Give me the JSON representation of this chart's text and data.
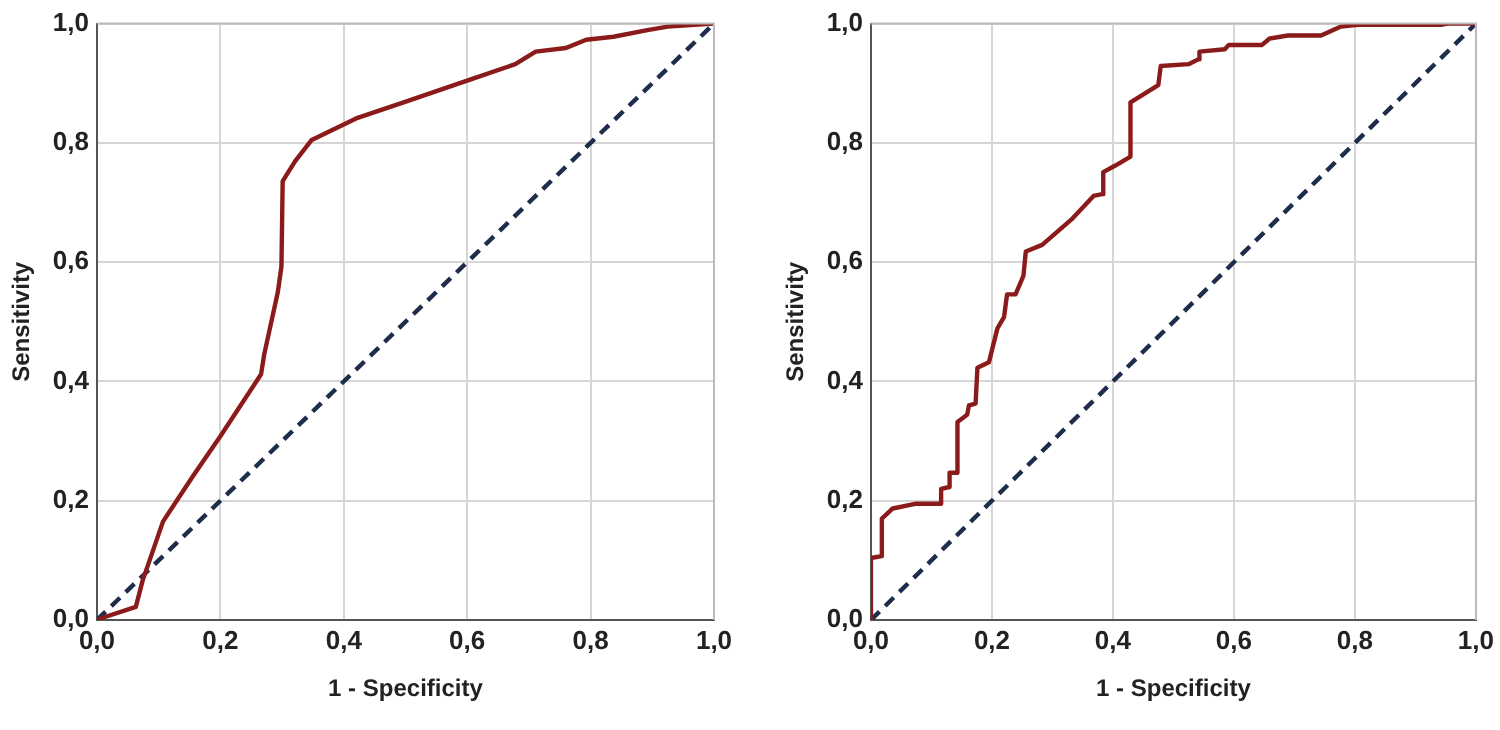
{
  "chart_data": [
    {
      "type": "line",
      "xlabel": "1 - Specificity",
      "ylabel": "Sensitivity",
      "xlim": [
        0,
        1
      ],
      "ylim": [
        0,
        1
      ],
      "xticks": [
        {
          "value": 0,
          "label": "0,0"
        },
        {
          "value": 0.2,
          "label": "0,2"
        },
        {
          "value": 0.4,
          "label": "0,4"
        },
        {
          "value": 0.6,
          "label": "0,6"
        },
        {
          "value": 0.8,
          "label": "0,8"
        },
        {
          "value": 1,
          "label": "1,0"
        }
      ],
      "yticks": [
        {
          "value": 0,
          "label": "0,0"
        },
        {
          "value": 0.2,
          "label": "0,2"
        },
        {
          "value": 0.4,
          "label": "0,4"
        },
        {
          "value": 0.6,
          "label": "0,6"
        },
        {
          "value": 0.8,
          "label": "0,8"
        },
        {
          "value": 1,
          "label": "1,0"
        }
      ],
      "grid": true,
      "legend": false,
      "marker": "none",
      "series": [
        {
          "color": "#8b1a1a",
          "line_style": "solid",
          "x": [
            0,
            0.013,
            0.063,
            0.074,
            0.107,
            0.156,
            0.2,
            0.266,
            0.271,
            0.293,
            0.299,
            0.301,
            0.321,
            0.348,
            0.42,
            0.497,
            0.607,
            0.678,
            0.711,
            0.76,
            0.793,
            0.837,
            0.892,
            0.925,
            1
          ],
          "values": [
            0,
            0.005,
            0.022,
            0.066,
            0.165,
            0.242,
            0.308,
            0.412,
            0.445,
            0.549,
            0.593,
            0.736,
            0.769,
            0.805,
            0.841,
            0.868,
            0.907,
            0.932,
            0.953,
            0.959,
            0.973,
            0.978,
            0.989,
            0.995,
            1
          ]
        },
        {
          "color": "#1f2d4d",
          "line_style": "dashed",
          "x": [
            0,
            1
          ],
          "values": [
            0,
            1
          ]
        }
      ]
    },
    {
      "type": "line",
      "xlabel": "1 - Specificity",
      "ylabel": "Sensitivity",
      "xlim": [
        0,
        1
      ],
      "ylim": [
        0,
        1
      ],
      "xticks": [
        {
          "value": 0,
          "label": "0,0"
        },
        {
          "value": 0.2,
          "label": "0,2"
        },
        {
          "value": 0.4,
          "label": "0,4"
        },
        {
          "value": 0.6,
          "label": "0,6"
        },
        {
          "value": 0.8,
          "label": "0,8"
        },
        {
          "value": 1,
          "label": "1,0"
        }
      ],
      "yticks": [
        {
          "value": 0,
          "label": "0,0"
        },
        {
          "value": 0.2,
          "label": "0,2"
        },
        {
          "value": 0.4,
          "label": "0,4"
        },
        {
          "value": 0.6,
          "label": "0,6"
        },
        {
          "value": 0.8,
          "label": "0,8"
        },
        {
          "value": 1,
          "label": "1,0"
        }
      ],
      "grid": true,
      "legend": false,
      "marker": "none",
      "series": [
        {
          "color": "#8b1a1a",
          "line_style": "solid",
          "x": [
            0,
            0,
            0.018,
            0.018,
            0.036,
            0.075,
            0.116,
            0.116,
            0.13,
            0.13,
            0.143,
            0.143,
            0.159,
            0.162,
            0.173,
            0.176,
            0.195,
            0.209,
            0.22,
            0.225,
            0.239,
            0.252,
            0.256,
            0.283,
            0.333,
            0.368,
            0.382,
            0.384,
            0.404,
            0.429,
            0.429,
            0.475,
            0.479,
            0.525,
            0.541,
            0.543,
            0.585,
            0.591,
            0.646,
            0.659,
            0.689,
            0.744,
            0.777,
            0.805,
            0.942,
            0.953,
            1
          ],
          "values": [
            0,
            0.104,
            0.107,
            0.17,
            0.187,
            0.195,
            0.195,
            0.22,
            0.223,
            0.247,
            0.247,
            0.332,
            0.344,
            0.36,
            0.363,
            0.423,
            0.432,
            0.489,
            0.508,
            0.546,
            0.546,
            0.577,
            0.618,
            0.629,
            0.673,
            0.711,
            0.714,
            0.751,
            0.762,
            0.777,
            0.868,
            0.897,
            0.929,
            0.932,
            0.94,
            0.953,
            0.957,
            0.964,
            0.964,
            0.975,
            0.98,
            0.98,
            0.995,
            0.998,
            0.998,
            1,
            1
          ]
        },
        {
          "color": "#1f2d4d",
          "line_style": "dashed",
          "x": [
            0,
            1
          ],
          "values": [
            0,
            1
          ]
        }
      ]
    }
  ]
}
